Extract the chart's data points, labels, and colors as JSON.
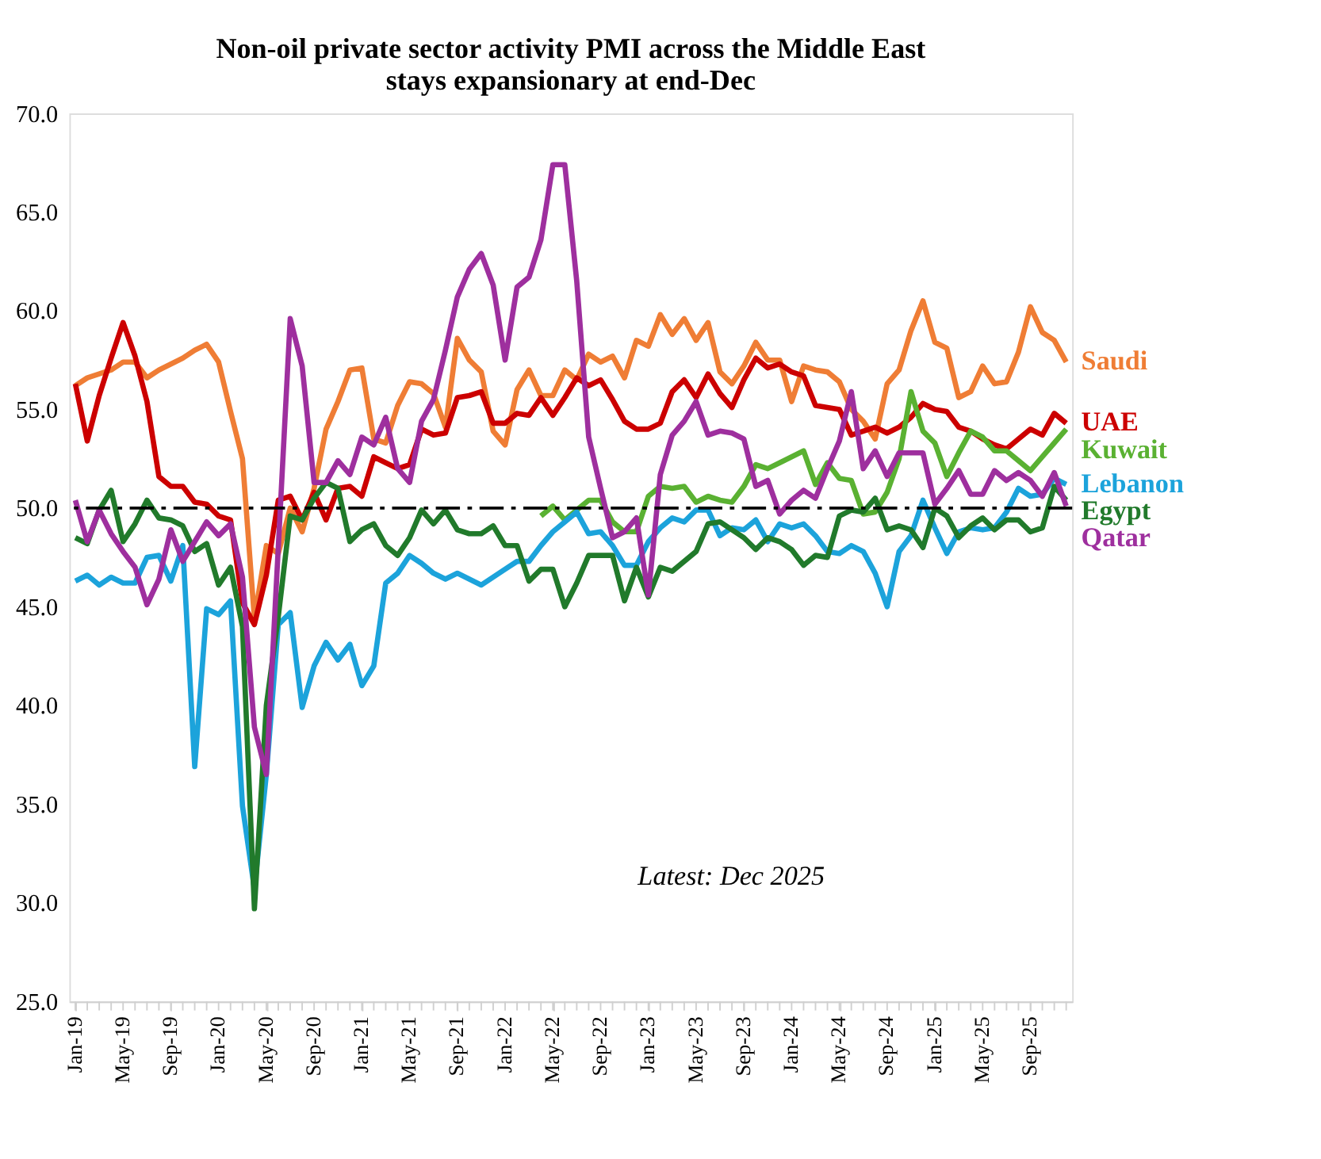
{
  "chart_data": {
    "type": "line",
    "title": "Non-oil private sector activity PMI across the Middle East\nstays expansionary at end-Dec",
    "categories": [
      "Jan-19",
      null,
      null,
      null,
      "May-19",
      null,
      null,
      null,
      "Sep-19",
      null,
      null,
      null,
      "Jan-20",
      null,
      null,
      null,
      "May-20",
      null,
      null,
      null,
      "Sep-20",
      null,
      null,
      null,
      "Jan-21",
      null,
      null,
      null,
      "May-21",
      null,
      null,
      null,
      "Sep-21",
      null,
      null,
      null,
      "Jan-22",
      null,
      null,
      null,
      "May-22",
      null,
      null,
      null,
      "Sep-22",
      null,
      null,
      null,
      "Jan-23",
      null,
      null,
      null,
      "May-23",
      null,
      null,
      null,
      "Sep-23",
      null,
      null,
      null,
      "Jan-24",
      null,
      null,
      null,
      "May-24",
      null,
      null,
      null,
      "Sep-24",
      null,
      null,
      null,
      "Jan-25",
      null,
      null,
      null,
      "May-25",
      null,
      null,
      null,
      "Sep-25",
      null,
      null,
      null
    ],
    "series": [
      {
        "name": "Saudi",
        "color": "#ef7d35",
        "values": [
          56.2,
          56.6,
          56.8,
          57.0,
          57.4,
          57.4,
          56.6,
          57.0,
          57.3,
          57.6,
          58.0,
          58.3,
          57.4,
          54.9,
          52.5,
          44.4,
          48.1,
          47.7,
          50.0,
          48.8,
          51.0,
          54.0,
          55.4,
          57.0,
          57.1,
          53.5,
          53.3,
          55.2,
          56.4,
          56.3,
          55.8,
          54.1,
          58.6,
          57.5,
          56.9,
          53.9,
          53.2,
          56.0,
          57.0,
          55.7,
          55.7,
          57.0,
          56.5,
          57.8,
          57.4,
          57.7,
          56.6,
          58.5,
          58.2,
          59.8,
          58.8,
          59.6,
          58.5,
          59.4,
          56.9,
          56.3,
          57.2,
          58.4,
          57.5,
          57.5,
          55.4,
          57.2,
          57.0,
          56.9,
          56.4,
          55.0,
          54.4,
          53.5,
          56.3,
          57.0,
          59.0,
          60.5,
          58.4,
          58.1,
          55.6,
          55.9,
          57.2,
          56.3,
          56.4,
          57.9,
          60.2,
          58.9,
          58.5,
          57.4
        ]
      },
      {
        "name": "UAE",
        "color": "#cc0000",
        "values": [
          56.3,
          53.4,
          55.7,
          57.6,
          59.4,
          57.7,
          55.4,
          51.6,
          51.1,
          51.1,
          50.3,
          50.2,
          49.6,
          49.4,
          45.2,
          44.1,
          46.6,
          50.4,
          50.6,
          49.4,
          50.8,
          49.4,
          51.0,
          51.1,
          50.6,
          52.6,
          52.3,
          52.0,
          52.2,
          54.0,
          53.7,
          53.8,
          55.6,
          55.7,
          55.9,
          54.3,
          54.3,
          54.8,
          54.7,
          55.6,
          54.7,
          55.6,
          56.6,
          56.2,
          56.5,
          55.5,
          54.4,
          54.0,
          54.0,
          54.3,
          55.9,
          56.5,
          55.6,
          56.8,
          55.8,
          55.1,
          56.5,
          57.6,
          57.1,
          57.3,
          56.9,
          56.7,
          55.2,
          55.1,
          55.0,
          53.7,
          53.9,
          54.1,
          53.8,
          54.1,
          54.6,
          55.3,
          55.0,
          54.9,
          54.1,
          53.9,
          53.5,
          53.2,
          53.0,
          53.5,
          54.0,
          53.7,
          54.8,
          54.3
        ]
      },
      {
        "name": "Kuwait",
        "color": "#5ab132",
        "values": [
          null,
          null,
          null,
          null,
          null,
          null,
          null,
          null,
          null,
          null,
          null,
          null,
          null,
          null,
          null,
          null,
          null,
          null,
          null,
          null,
          null,
          null,
          null,
          null,
          null,
          null,
          null,
          null,
          null,
          null,
          null,
          null,
          null,
          null,
          null,
          null,
          null,
          null,
          null,
          49.6,
          50.1,
          49.4,
          49.9,
          50.4,
          50.4,
          49.3,
          48.8,
          48.8,
          50.6,
          51.1,
          51.0,
          51.1,
          50.3,
          50.6,
          50.4,
          50.3,
          51.1,
          52.2,
          52.0,
          52.3,
          52.6,
          52.9,
          51.2,
          52.3,
          51.5,
          51.4,
          49.7,
          49.8,
          50.8,
          52.5,
          55.9,
          53.9,
          53.3,
          51.6,
          52.8,
          53.9,
          53.6,
          52.9,
          52.9,
          52.4,
          51.9,
          52.6,
          53.3,
          54.0
        ]
      },
      {
        "name": "Lebanon",
        "color": "#1ca3db",
        "values": [
          46.3,
          46.6,
          46.1,
          46.5,
          46.2,
          46.2,
          47.5,
          47.6,
          46.3,
          48.1,
          36.9,
          44.9,
          44.6,
          45.3,
          34.9,
          30.7,
          36.5,
          44.1,
          44.7,
          39.9,
          42.0,
          43.2,
          42.3,
          43.1,
          41.0,
          42.0,
          46.2,
          46.7,
          47.6,
          47.2,
          46.7,
          46.4,
          46.7,
          46.4,
          46.1,
          46.5,
          46.9,
          47.3,
          47.3,
          48.1,
          48.8,
          49.3,
          49.8,
          48.7,
          48.8,
          48.1,
          47.1,
          47.1,
          48.3,
          49.0,
          49.5,
          49.3,
          49.9,
          49.9,
          48.6,
          49.0,
          48.9,
          49.4,
          48.3,
          49.2,
          49.0,
          49.2,
          48.6,
          47.8,
          47.7,
          48.1,
          47.8,
          46.7,
          45.0,
          47.8,
          48.6,
          50.4,
          49.0,
          47.7,
          48.8,
          49.0,
          48.9,
          49.0,
          49.8,
          51.0,
          50.6,
          50.7,
          51.5,
          51.2
        ]
      },
      {
        "name": "Egypt",
        "color": "#217a2b",
        "values": [
          48.5,
          48.2,
          49.9,
          50.9,
          48.3,
          49.2,
          50.4,
          49.5,
          49.4,
          49.1,
          47.8,
          48.2,
          46.1,
          47.0,
          44.0,
          29.7,
          40.0,
          44.5,
          49.6,
          49.4,
          50.5,
          51.3,
          51.0,
          48.3,
          48.9,
          49.2,
          48.1,
          47.6,
          48.5,
          49.9,
          49.2,
          49.9,
          48.9,
          48.7,
          48.7,
          49.1,
          48.1,
          48.1,
          46.3,
          46.9,
          46.9,
          45.0,
          46.2,
          47.6,
          47.6,
          47.6,
          45.3,
          47.0,
          45.5,
          47.0,
          46.8,
          47.3,
          47.8,
          49.2,
          49.3,
          48.9,
          48.5,
          47.9,
          48.5,
          48.3,
          47.9,
          47.1,
          47.6,
          47.5,
          49.6,
          49.9,
          49.8,
          50.5,
          48.9,
          49.1,
          48.9,
          48.0,
          50.0,
          49.6,
          48.5,
          49.1,
          49.5,
          48.9,
          49.4,
          49.4,
          48.8,
          49.0,
          51.1,
          50.4
        ]
      },
      {
        "name": "Qatar",
        "color": "#9e2f9e",
        "values": [
          50.4,
          48.3,
          49.9,
          48.7,
          47.8,
          47.0,
          45.1,
          46.4,
          48.9,
          47.3,
          48.3,
          49.3,
          48.6,
          49.2,
          46.5,
          38.9,
          36.5,
          48.0,
          59.6,
          57.2,
          51.3,
          51.3,
          52.4,
          51.7,
          53.6,
          53.2,
          54.6,
          52.0,
          51.3,
          54.4,
          55.5,
          58.0,
          60.7,
          62.1,
          62.9,
          61.3,
          57.5,
          61.2,
          61.7,
          63.6,
          67.4,
          67.4,
          61.5,
          53.6,
          51.0,
          48.5,
          48.8,
          49.5,
          45.6,
          51.7,
          53.7,
          54.4,
          55.4,
          53.7,
          53.9,
          53.8,
          53.5,
          51.1,
          51.4,
          49.7,
          50.4,
          50.9,
          50.5,
          52.0,
          53.4,
          55.9,
          52.0,
          52.9,
          51.6,
          52.8,
          52.8,
          52.8,
          50.2,
          51.0,
          51.9,
          50.7,
          50.7,
          51.9,
          51.4,
          51.8,
          51.4,
          50.6,
          51.8,
          50.1
        ]
      }
    ],
    "ylim": [
      25,
      70
    ],
    "yticks": [
      {
        "value": 25,
        "label": "25.0"
      },
      {
        "value": 30,
        "label": "30.0"
      },
      {
        "value": 35,
        "label": "35.0"
      },
      {
        "value": 40,
        "label": "40.0"
      },
      {
        "value": 45,
        "label": "45.0"
      },
      {
        "value": 50,
        "label": "50.0"
      },
      {
        "value": 55,
        "label": "55.0"
      },
      {
        "value": 60,
        "label": "60.0"
      },
      {
        "value": 65,
        "label": "65.0"
      },
      {
        "value": 70,
        "label": "70.0"
      }
    ],
    "ref_lines": [
      {
        "axis": "y",
        "value": 50,
        "color": "#000000",
        "line_style": "dashed"
      }
    ],
    "annotations": [
      "Latest: Dec 2025"
    ],
    "legend": "right",
    "grid": false,
    "marker": "none",
    "line_style": "solid"
  }
}
